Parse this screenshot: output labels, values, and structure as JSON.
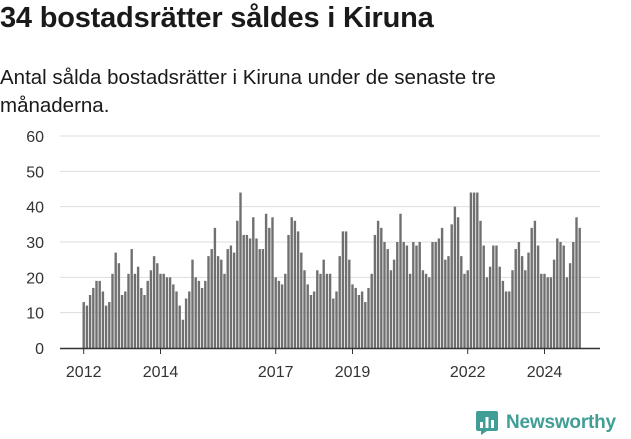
{
  "title": "34 bostadsrätter såldes i Kiruna",
  "subtitle": "Antal sålda bostadsrätter i Kiruna under de senaste tre månaderna.",
  "brand": {
    "name": "Newsworthy",
    "icon": "newsworthy-chart-bubble-icon"
  },
  "colors": {
    "bar": "#707070",
    "highlight": "#3f9e96",
    "axis": "#333333",
    "grid": "#dddddd",
    "brand": "#3f9e96"
  },
  "chart_data": {
    "type": "bar",
    "title": "34 bostadsrätter såldes i Kiruna",
    "xlabel": "",
    "ylabel": "",
    "ylim": [
      0,
      60
    ],
    "yticks": [
      0,
      10,
      20,
      30,
      40,
      50,
      60
    ],
    "grid": true,
    "legend": "none",
    "period": "month",
    "start": "2012-01",
    "x_tick_labels": [
      "2012",
      "2014",
      "2017",
      "2019",
      "2022",
      "2024"
    ],
    "highlight": {
      "index": 156,
      "label": "34"
    },
    "values": [
      13,
      12,
      15,
      17,
      19,
      19,
      16,
      12,
      13,
      21,
      27,
      24,
      15,
      16,
      21,
      28,
      21,
      23,
      17,
      15,
      19,
      22,
      26,
      24,
      21,
      21,
      20,
      20,
      18,
      16,
      12,
      8,
      14,
      16,
      25,
      20,
      19,
      17,
      19,
      26,
      28,
      34,
      26,
      25,
      21,
      28,
      29,
      27,
      36,
      44,
      32,
      32,
      31,
      37,
      31,
      28,
      28,
      38,
      34,
      37,
      20,
      19,
      18,
      21,
      32,
      37,
      36,
      33,
      27,
      22,
      18,
      15,
      16,
      22,
      21,
      25,
      21,
      21,
      14,
      16,
      26,
      33,
      33,
      25,
      18,
      17,
      15,
      16,
      13,
      17,
      21,
      32,
      36,
      34,
      30,
      28,
      22,
      25,
      30,
      38,
      30,
      29,
      21,
      30,
      29,
      30,
      22,
      21,
      20,
      30,
      30,
      31,
      34,
      25,
      26,
      35,
      40,
      37,
      26,
      21,
      22,
      44,
      44,
      44,
      36,
      29,
      20,
      23,
      29,
      29,
      23,
      19,
      16,
      16,
      22,
      28,
      30,
      26,
      22,
      27,
      34,
      36,
      29,
      21,
      21,
      20,
      20,
      25,
      31,
      30,
      29,
      20,
      24,
      30,
      37,
      34
    ]
  }
}
